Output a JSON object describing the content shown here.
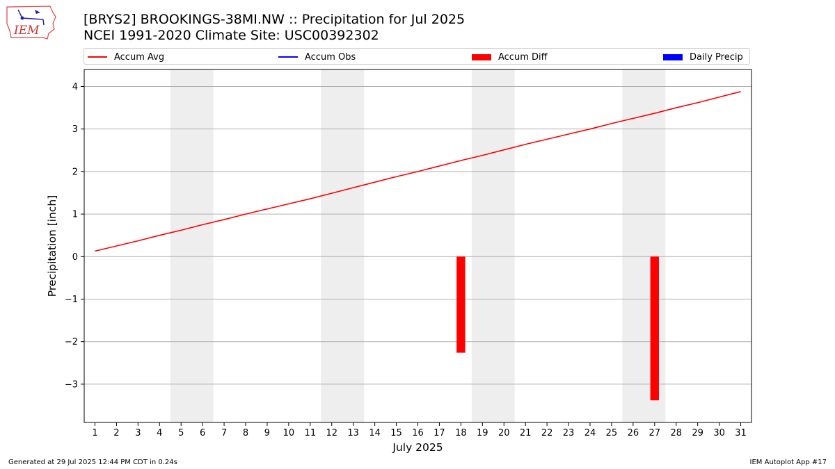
{
  "title": "[BRYS2] BROOKINGS-38MI.NW :: Precipitation for Jul 2025",
  "subtitle": "NCEI 1991-2020 Climate Site: USC00392302",
  "logo_text": "IEM",
  "footer": {
    "left": "Generated at 29 Jul 2025 12:44 PM CDT in 0.24s",
    "right": "IEM Autoplot App #17"
  },
  "legend": [
    {
      "label": "Accum Avg",
      "color": "#ff0000",
      "kind": "line"
    },
    {
      "label": "Accum Obs",
      "color": "#0000ff",
      "kind": "line"
    },
    {
      "label": "Accum Diff",
      "color": "#ff0000",
      "kind": "box"
    },
    {
      "label": "Daily Precip",
      "color": "#0000ff",
      "kind": "box"
    }
  ],
  "chart_data": {
    "type": "line",
    "xlabel": "July 2025",
    "ylabel": "Precipitation [inch]",
    "xlim": [
      0.5,
      31.5
    ],
    "ylim": [
      -3.9,
      4.4
    ],
    "yticks": [
      4,
      3,
      2,
      1,
      0,
      -1,
      -2,
      -3
    ],
    "ytick_labels": [
      "4",
      "3",
      "2",
      "1",
      "0",
      "−1",
      "−2",
      "−3"
    ],
    "x": [
      1,
      2,
      3,
      4,
      5,
      6,
      7,
      8,
      9,
      10,
      11,
      12,
      13,
      14,
      15,
      16,
      17,
      18,
      19,
      20,
      21,
      22,
      23,
      24,
      25,
      26,
      27,
      28,
      29,
      30,
      31
    ],
    "weekend_bands": [
      [
        4.5,
        6.5
      ],
      [
        11.5,
        13.5
      ],
      [
        18.5,
        20.5
      ],
      [
        25.5,
        27.5
      ]
    ],
    "grid": "horizontal",
    "series": [
      {
        "name": "Accum Avg",
        "color": "#ff0000",
        "values": [
          0.13,
          0.25,
          0.37,
          0.5,
          0.62,
          0.75,
          0.87,
          1.0,
          1.12,
          1.24,
          1.36,
          1.49,
          1.62,
          1.75,
          1.88,
          2.0,
          2.13,
          2.26,
          2.38,
          2.51,
          2.64,
          2.76,
          2.88,
          3.0,
          3.13,
          3.25,
          3.37,
          3.5,
          3.62,
          3.75,
          3.88
        ]
      }
    ],
    "diff_bars": {
      "name": "Accum Diff",
      "color": "#ff0000",
      "points": [
        {
          "x": 18,
          "value": -2.26
        },
        {
          "x": 27,
          "value": -3.38
        }
      ]
    }
  }
}
